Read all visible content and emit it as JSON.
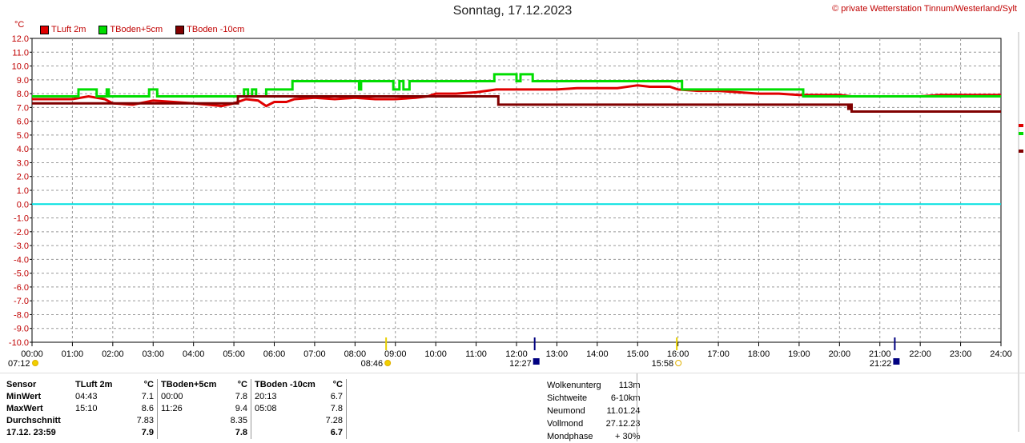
{
  "header": {
    "title": "Sonntag, 17.12.2023",
    "copyright": "© private Wetterstation Tinnum/Westerland/Sylt",
    "unit": "°C"
  },
  "legend": [
    {
      "label": "TLuft 2m",
      "color": "#e00000"
    },
    {
      "label": "TBoden+5cm",
      "color": "#00dd00"
    },
    {
      "label": "TBoden -10cm",
      "color": "#800000"
    }
  ],
  "chart_data": {
    "type": "line",
    "xlim": [
      0,
      24
    ],
    "ylim": [
      -10,
      12
    ],
    "grid": true,
    "zero_line_color": "#00e0e0",
    "x_ticks": [
      "00:00",
      "01:00",
      "02:00",
      "03:00",
      "04:00",
      "05:00",
      "06:00",
      "07:00",
      "08:00",
      "09:00",
      "10:00",
      "11:00",
      "12:00",
      "13:00",
      "14:00",
      "15:00",
      "16:00",
      "17:00",
      "18:00",
      "19:00",
      "20:00",
      "21:00",
      "22:00",
      "23:00",
      "24:00"
    ],
    "y_ticks": [
      "12.0",
      "11.0",
      "10.0",
      "9.0",
      "8.0",
      "7.0",
      "6.0",
      "5.0",
      "4.0",
      "3.0",
      "2.0",
      "1.0",
      "0.0",
      "-1.0",
      "-2.0",
      "-3.0",
      "-4.0",
      "-5.0",
      "-6.0",
      "-7.0",
      "-8.0",
      "-9.0",
      "-10.0"
    ],
    "series": [
      {
        "name": "TLuft 2m",
        "color": "#e00000",
        "points": [
          [
            0,
            7.6
          ],
          [
            1,
            7.6
          ],
          [
            1.4,
            7.8
          ],
          [
            1.8,
            7.6
          ],
          [
            2.0,
            7.3
          ],
          [
            2.5,
            7.2
          ],
          [
            3.0,
            7.5
          ],
          [
            3.5,
            7.4
          ],
          [
            4.0,
            7.3
          ],
          [
            4.7,
            7.1
          ],
          [
            5.0,
            7.3
          ],
          [
            5.3,
            7.6
          ],
          [
            5.6,
            7.5
          ],
          [
            5.8,
            7.1
          ],
          [
            6.0,
            7.4
          ],
          [
            6.3,
            7.4
          ],
          [
            6.5,
            7.6
          ],
          [
            7.0,
            7.7
          ],
          [
            7.5,
            7.6
          ],
          [
            8.0,
            7.7
          ],
          [
            8.5,
            7.6
          ],
          [
            9.0,
            7.6
          ],
          [
            9.5,
            7.7
          ],
          [
            9.8,
            7.8
          ],
          [
            10.0,
            8.0
          ],
          [
            10.5,
            8.0
          ],
          [
            11.0,
            8.1
          ],
          [
            11.5,
            8.3
          ],
          [
            12.0,
            8.3
          ],
          [
            12.5,
            8.3
          ],
          [
            13.0,
            8.3
          ],
          [
            13.5,
            8.4
          ],
          [
            14.0,
            8.4
          ],
          [
            14.5,
            8.4
          ],
          [
            15.0,
            8.6
          ],
          [
            15.3,
            8.5
          ],
          [
            15.8,
            8.5
          ],
          [
            16.0,
            8.3
          ],
          [
            16.5,
            8.2
          ],
          [
            17.0,
            8.2
          ],
          [
            17.5,
            8.1
          ],
          [
            18.0,
            8.0
          ],
          [
            18.5,
            8.0
          ],
          [
            19.0,
            7.9
          ],
          [
            19.5,
            7.9
          ],
          [
            20.0,
            7.9
          ],
          [
            20.3,
            7.8
          ],
          [
            21.0,
            7.8
          ],
          [
            22.0,
            7.8
          ],
          [
            22.5,
            7.9
          ],
          [
            23.5,
            7.9
          ],
          [
            24.0,
            7.9
          ]
        ]
      },
      {
        "name": "TBoden+5cm",
        "color": "#00dd00",
        "points": [
          [
            0,
            7.8
          ],
          [
            1.15,
            7.8
          ],
          [
            1.15,
            8.3
          ],
          [
            1.6,
            8.3
          ],
          [
            1.6,
            7.8
          ],
          [
            1.85,
            7.8
          ],
          [
            1.85,
            8.3
          ],
          [
            1.9,
            8.3
          ],
          [
            1.9,
            7.8
          ],
          [
            2.9,
            7.8
          ],
          [
            2.9,
            8.3
          ],
          [
            3.1,
            8.3
          ],
          [
            3.1,
            7.8
          ],
          [
            5.25,
            7.8
          ],
          [
            5.25,
            8.3
          ],
          [
            5.35,
            8.3
          ],
          [
            5.35,
            7.8
          ],
          [
            5.45,
            7.8
          ],
          [
            5.45,
            8.3
          ],
          [
            5.55,
            8.3
          ],
          [
            5.55,
            7.8
          ],
          [
            5.8,
            7.8
          ],
          [
            5.8,
            8.3
          ],
          [
            6.45,
            8.3
          ],
          [
            6.45,
            8.9
          ],
          [
            8.1,
            8.9
          ],
          [
            8.1,
            8.3
          ],
          [
            8.15,
            8.3
          ],
          [
            8.15,
            8.9
          ],
          [
            8.95,
            8.9
          ],
          [
            8.95,
            8.3
          ],
          [
            9.1,
            8.3
          ],
          [
            9.1,
            8.9
          ],
          [
            9.2,
            8.9
          ],
          [
            9.2,
            8.3
          ],
          [
            9.35,
            8.3
          ],
          [
            9.35,
            8.9
          ],
          [
            11.45,
            8.9
          ],
          [
            11.45,
            9.4
          ],
          [
            12.0,
            9.4
          ],
          [
            12.0,
            8.9
          ],
          [
            12.1,
            8.9
          ],
          [
            12.1,
            9.4
          ],
          [
            12.4,
            9.4
          ],
          [
            12.4,
            8.9
          ],
          [
            16.1,
            8.9
          ],
          [
            16.1,
            8.3
          ],
          [
            19.1,
            8.3
          ],
          [
            19.1,
            7.8
          ],
          [
            24.0,
            7.8
          ]
        ]
      },
      {
        "name": "TBoden -10cm",
        "color": "#800000",
        "points": [
          [
            0,
            7.3
          ],
          [
            5.1,
            7.3
          ],
          [
            5.1,
            7.8
          ],
          [
            11.55,
            7.8
          ],
          [
            11.55,
            7.2
          ],
          [
            20.22,
            7.2
          ],
          [
            20.22,
            6.9
          ],
          [
            20.25,
            6.9
          ],
          [
            20.25,
            7.2
          ],
          [
            20.3,
            7.2
          ],
          [
            20.3,
            6.7
          ],
          [
            24.0,
            6.7
          ]
        ]
      }
    ],
    "sun_events": [
      {
        "label": "07:12",
        "hour": 0.0,
        "icon": "sunrise-icon"
      },
      {
        "label": "08:46",
        "hour": 8.77,
        "icon": "sun-icon"
      },
      {
        "label": "12:27",
        "hour": 12.45,
        "icon": "moonrise-icon"
      },
      {
        "label": "15:58",
        "hour": 15.97,
        "icon": "sunset-icon"
      },
      {
        "label": "21:22",
        "hour": 21.37,
        "icon": "moonset-icon"
      }
    ]
  },
  "stats": {
    "header": [
      "Sensor",
      "TLuft 2m",
      "°C",
      "TBoden+5cm",
      "°C",
      "TBoden -10cm",
      "°C"
    ],
    "rows": [
      {
        "label": "MinWert",
        "c1": "04:43",
        "v1": "7.1",
        "c2": "00:00",
        "v2": "7.8",
        "c3": "20:13",
        "v3": "6.7"
      },
      {
        "label": "MaxWert",
        "c1": "15:10",
        "v1": "8.6",
        "c2": "11:26",
        "v2": "9.4",
        "c3": "05:08",
        "v3": "7.8"
      },
      {
        "label": "Durchschnitt",
        "c1": "",
        "v1": "7.83",
        "c2": "",
        "v2": "8.35",
        "c3": "",
        "v3": "7.28"
      },
      {
        "label": "17.12. 23:59",
        "c1": "",
        "v1": "7.9",
        "c2": "",
        "v2": "7.8",
        "c3": "",
        "v3": "6.7"
      }
    ]
  },
  "env": [
    {
      "label": "Wolkenunterg",
      "value": "113m"
    },
    {
      "label": "Sichtweite",
      "value": "6-10km"
    },
    {
      "label": "Neumond",
      "value": "11.01.24"
    },
    {
      "label": "Vollmond",
      "value": "27.12.23"
    },
    {
      "label": "Mondphase",
      "value": "+ 30%"
    }
  ]
}
